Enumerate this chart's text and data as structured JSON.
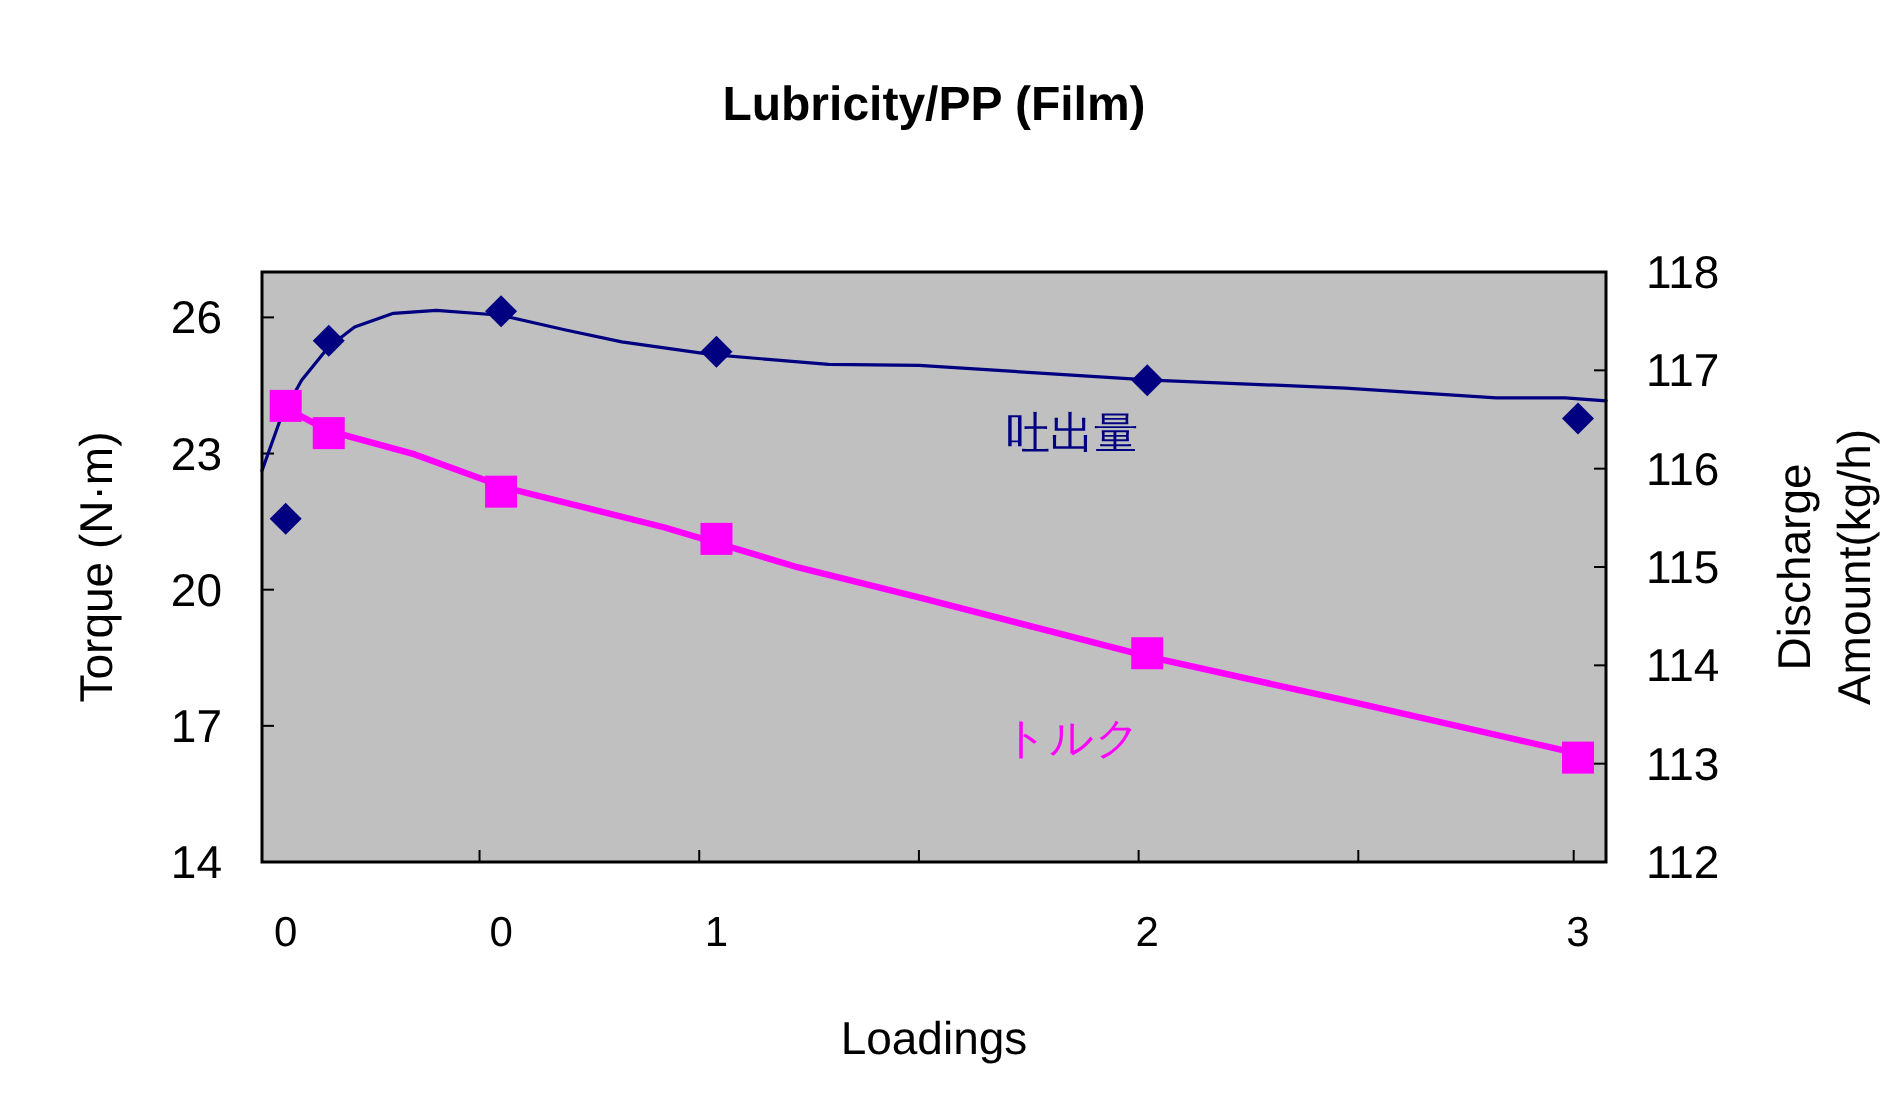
{
  "chart_data": {
    "type": "scatter",
    "title": "Lubricity/PP (Film)",
    "xlabel": "Loadings",
    "ylabel": "Torque (N·m)",
    "y2label": "Discharge Amount(kg/h)",
    "xlim": [
      -0.055,
      3.065
    ],
    "xticks": [
      {
        "value": 0,
        "label": "0"
      },
      {
        "value": 0.45,
        "label": null
      },
      {
        "value": 0.5,
        "label": "0"
      },
      {
        "value": 0.96,
        "label": null
      },
      {
        "value": 1,
        "label": "1"
      },
      {
        "value": 1.47,
        "label": null
      },
      {
        "value": 1.98,
        "label": null
      },
      {
        "value": 2,
        "label": "2"
      },
      {
        "value": 2.49,
        "label": null
      },
      {
        "value": 2.99,
        "label": null
      },
      {
        "value": 3,
        "label": "3"
      }
    ],
    "ylim": [
      14,
      27
    ],
    "yticks": [
      14,
      17,
      20,
      23,
      26
    ],
    "y2lim": [
      112,
      118
    ],
    "y2ticks": [
      112,
      113,
      114,
      115,
      116,
      117,
      118
    ],
    "grid": false,
    "series": [
      {
        "type": "line",
        "name": "吐出量",
        "axis": "y2",
        "color": "#000080",
        "marker": "none",
        "x": [
          -0.055,
          -0.01,
          0.037,
          0.1,
          0.16,
          0.25,
          0.35,
          0.5,
          0.65,
          0.78,
          0.99,
          1.26,
          1.47,
          2.01,
          2.46,
          2.81,
          2.97,
          3.065
        ],
        "values": [
          115.98,
          116.53,
          116.9,
          117.24,
          117.44,
          117.58,
          117.61,
          117.56,
          117.41,
          117.29,
          117.16,
          117.06,
          117.05,
          116.9,
          116.82,
          116.72,
          116.72,
          116.69
        ]
      },
      {
        "axis": "y2",
        "color": "#000080",
        "marker": "diamond",
        "x": [
          0,
          0.1,
          0.5,
          1,
          2,
          3
        ],
        "values": [
          115.49,
          117.3,
          117.6,
          117.19,
          116.9,
          116.51
        ]
      },
      {
        "type": "line",
        "name": "トルク",
        "color": "#ff00ff",
        "marker": "none",
        "x": [
          0,
          0.1,
          0.3,
          0.51,
          0.88,
          1.19,
          1.47,
          2.01,
          2.46,
          3.0
        ],
        "values": [
          24.0,
          23.5,
          22.98,
          22.25,
          21.37,
          20.49,
          19.83,
          18.51,
          17.56,
          16.39
        ]
      },
      {
        "color": "#ff00ff",
        "marker": "square",
        "x": [
          0,
          0.1,
          0.5,
          1,
          2,
          3
        ],
        "values": [
          24.05,
          23.45,
          22.16,
          21.12,
          18.6,
          16.3
        ]
      }
    ]
  }
}
